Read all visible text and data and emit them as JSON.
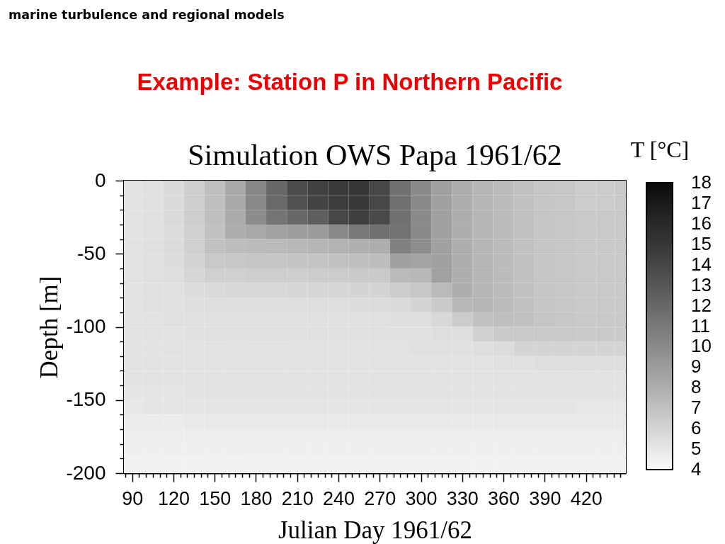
{
  "chart_data": {
    "type": "heatmap",
    "title": "Example: Station P in Northern Pacific",
    "subtitle": "Simulation OWS Papa 1961/62",
    "annotations": [
      "marine turbulence and regional models"
    ],
    "xlabel": "Julian Day 1961/62",
    "ylabel": "Depth [m]",
    "clabel": "T [°C]",
    "x": [
      90,
      105,
      120,
      135,
      150,
      165,
      180,
      195,
      210,
      225,
      240,
      255,
      270,
      285,
      300,
      315,
      330,
      345,
      360,
      375,
      390,
      405,
      420,
      435,
      447
    ],
    "y": [
      -5,
      -15,
      -25,
      -35,
      -45,
      -55,
      -65,
      -75,
      -85,
      -95,
      -105,
      -115,
      -125,
      -135,
      -145,
      -155,
      -165,
      -175,
      -185,
      -195
    ],
    "cells": [
      [
        5.3,
        5.4,
        5.7,
        6.3,
        7.1,
        8.3,
        10.2,
        12.0,
        13.6,
        14.4,
        14.8,
        15.0,
        14.0,
        11.5,
        10.0,
        8.8,
        8.0,
        7.6,
        7.3,
        7.0,
        6.8,
        6.7,
        6.4,
        6.4,
        6.6
      ],
      [
        5.3,
        5.4,
        5.7,
        6.3,
        7.1,
        8.3,
        10.1,
        11.9,
        13.4,
        14.2,
        14.7,
        14.9,
        14.0,
        11.5,
        10.0,
        8.8,
        8.0,
        7.6,
        7.3,
        7.0,
        6.8,
        6.7,
        6.4,
        6.4,
        6.6
      ],
      [
        5.3,
        5.4,
        5.7,
        6.3,
        7.1,
        8.2,
        9.9,
        11.2,
        12.0,
        12.5,
        14.0,
        14.5,
        13.8,
        11.5,
        10.0,
        8.8,
        8.0,
        7.6,
        7.3,
        7.0,
        6.8,
        6.7,
        6.6,
        6.6,
        6.6
      ],
      [
        5.3,
        5.4,
        5.6,
        6.2,
        7.0,
        8.0,
        8.3,
        8.7,
        8.9,
        9.0,
        10.0,
        11.0,
        11.5,
        11.4,
        10.0,
        8.8,
        8.0,
        7.6,
        7.3,
        7.0,
        6.8,
        6.7,
        6.6,
        6.6,
        6.6
      ],
      [
        5.3,
        5.4,
        5.6,
        6.2,
        7.0,
        7.2,
        7.3,
        7.4,
        7.5,
        7.6,
        7.7,
        7.9,
        8.0,
        10.5,
        9.8,
        8.8,
        8.0,
        7.6,
        7.3,
        7.0,
        6.8,
        6.7,
        6.6,
        6.6,
        6.6
      ],
      [
        5.3,
        5.4,
        5.6,
        6.1,
        6.6,
        6.7,
        6.8,
        6.8,
        6.9,
        6.9,
        7.0,
        7.1,
        7.2,
        8.8,
        8.6,
        8.8,
        8.0,
        7.6,
        7.3,
        7.0,
        6.8,
        6.7,
        6.6,
        6.6,
        6.6
      ],
      [
        5.3,
        5.4,
        5.5,
        5.9,
        6.2,
        6.2,
        6.3,
        6.3,
        6.3,
        6.4,
        6.4,
        6.5,
        6.5,
        7.4,
        7.5,
        8.7,
        8.0,
        7.6,
        7.3,
        7.0,
        6.8,
        6.7,
        6.6,
        6.6,
        6.6
      ],
      [
        5.3,
        5.4,
        5.4,
        5.6,
        5.7,
        5.8,
        5.8,
        5.8,
        5.9,
        5.9,
        5.9,
        6.0,
        6.0,
        6.4,
        6.7,
        7.4,
        8.0,
        7.6,
        7.3,
        7.0,
        6.8,
        6.7,
        6.6,
        6.6,
        6.6
      ],
      [
        5.3,
        5.4,
        5.4,
        5.5,
        5.5,
        5.5,
        5.5,
        5.5,
        5.5,
        5.5,
        5.5,
        5.6,
        5.6,
        5.7,
        6.0,
        6.5,
        7.5,
        7.6,
        7.3,
        7.0,
        6.8,
        6.7,
        6.6,
        6.6,
        6.6
      ],
      [
        5.3,
        5.3,
        5.4,
        5.4,
        5.4,
        5.4,
        5.4,
        5.4,
        5.4,
        5.4,
        5.4,
        5.4,
        5.4,
        5.5,
        5.5,
        5.8,
        6.4,
        7.0,
        7.1,
        7.0,
        6.8,
        6.7,
        6.6,
        6.6,
        6.6
      ],
      [
        5.3,
        5.3,
        5.3,
        5.4,
        5.4,
        5.4,
        5.4,
        5.4,
        5.4,
        5.4,
        5.4,
        5.4,
        5.4,
        5.4,
        5.4,
        5.5,
        5.5,
        6.2,
        6.5,
        6.6,
        6.6,
        6.6,
        6.5,
        6.5,
        6.5
      ],
      [
        5.2,
        5.2,
        5.3,
        5.3,
        5.3,
        5.3,
        5.3,
        5.3,
        5.3,
        5.3,
        5.3,
        5.3,
        5.3,
        5.3,
        5.4,
        5.4,
        5.4,
        5.5,
        5.6,
        6.0,
        6.0,
        6.0,
        6.0,
        6.0,
        6.0
      ],
      [
        5.2,
        5.2,
        5.2,
        5.3,
        5.3,
        5.3,
        5.3,
        5.3,
        5.3,
        5.3,
        5.3,
        5.3,
        5.3,
        5.3,
        5.3,
        5.3,
        5.3,
        5.3,
        5.4,
        5.4,
        5.5,
        5.5,
        5.5,
        5.5,
        5.5
      ],
      [
        5.2,
        5.2,
        5.2,
        5.2,
        5.2,
        5.2,
        5.2,
        5.2,
        5.2,
        5.2,
        5.2,
        5.2,
        5.2,
        5.2,
        5.2,
        5.2,
        5.2,
        5.3,
        5.3,
        5.3,
        5.3,
        5.3,
        5.3,
        5.3,
        5.3
      ],
      [
        5.1,
        5.1,
        5.1,
        5.2,
        5.2,
        5.2,
        5.2,
        5.2,
        5.2,
        5.2,
        5.2,
        5.2,
        5.2,
        5.2,
        5.2,
        5.2,
        5.2,
        5.2,
        5.2,
        5.2,
        5.2,
        5.2,
        5.2,
        5.2,
        5.2
      ],
      [
        5.0,
        5.1,
        5.1,
        5.1,
        5.1,
        5.1,
        5.1,
        5.1,
        5.1,
        5.1,
        5.1,
        5.1,
        5.1,
        5.1,
        5.1,
        5.1,
        5.1,
        5.1,
        5.1,
        5.1,
        5.1,
        5.1,
        5.0,
        5.0,
        5.0
      ],
      [
        4.8,
        4.8,
        4.8,
        4.9,
        4.9,
        4.9,
        4.9,
        4.9,
        4.9,
        4.9,
        4.9,
        4.9,
        4.9,
        4.9,
        4.9,
        4.9,
        4.9,
        4.9,
        4.9,
        4.9,
        4.9,
        4.9,
        4.9,
        4.9,
        4.9
      ],
      [
        4.7,
        4.7,
        4.7,
        4.7,
        4.7,
        4.7,
        4.7,
        4.7,
        4.7,
        4.7,
        4.7,
        4.7,
        4.7,
        4.7,
        4.7,
        4.7,
        4.7,
        4.7,
        4.7,
        4.7,
        4.7,
        4.7,
        4.7,
        4.7,
        4.7
      ],
      [
        4.6,
        4.6,
        4.6,
        4.6,
        4.6,
        4.6,
        4.6,
        4.6,
        4.6,
        4.6,
        4.6,
        4.6,
        4.6,
        4.6,
        4.6,
        4.6,
        4.6,
        4.6,
        4.6,
        4.6,
        4.6,
        4.6,
        4.6,
        4.6,
        4.6
      ],
      [
        4.5,
        4.5,
        4.5,
        4.5,
        4.5,
        4.5,
        4.5,
        4.5,
        4.5,
        4.5,
        4.5,
        4.5,
        4.5,
        4.5,
        4.5,
        4.5,
        4.5,
        4.5,
        4.5,
        4.5,
        4.5,
        4.5,
        4.5,
        4.5,
        4.5
      ]
    ],
    "xlim": [
      84,
      449
    ],
    "ylim": [
      -200,
      0
    ],
    "xticks": [
      {
        "value": 85,
        "label": null
      },
      90,
      {
        "value": 95,
        "label": null
      },
      {
        "value": 100,
        "label": null
      },
      {
        "value": 105,
        "label": null
      },
      {
        "value": 110,
        "label": null
      },
      {
        "value": 115,
        "label": null
      },
      120,
      {
        "value": 125,
        "label": null
      },
      {
        "value": 130,
        "label": null
      },
      {
        "value": 135,
        "label": null
      },
      {
        "value": 140,
        "label": null
      },
      {
        "value": 145,
        "label": null
      },
      150,
      {
        "value": 155,
        "label": null
      },
      {
        "value": 160,
        "label": null
      },
      {
        "value": 165,
        "label": null
      },
      {
        "value": 170,
        "label": null
      },
      {
        "value": 175,
        "label": null
      },
      180,
      {
        "value": 185,
        "label": null
      },
      {
        "value": 190,
        "label": null
      },
      {
        "value": 195,
        "label": null
      },
      {
        "value": 200,
        "label": null
      },
      {
        "value": 205,
        "label": null
      },
      210,
      {
        "value": 215,
        "label": null
      },
      {
        "value": 220,
        "label": null
      },
      {
        "value": 225,
        "label": null
      },
      {
        "value": 230,
        "label": null
      },
      {
        "value": 235,
        "label": null
      },
      240,
      {
        "value": 245,
        "label": null
      },
      {
        "value": 250,
        "label": null
      },
      {
        "value": 255,
        "label": null
      },
      {
        "value": 260,
        "label": null
      },
      {
        "value": 265,
        "label": null
      },
      270,
      {
        "value": 275,
        "label": null
      },
      {
        "value": 280,
        "label": null
      },
      {
        "value": 285,
        "label": null
      },
      {
        "value": 290,
        "label": null
      },
      {
        "value": 295,
        "label": null
      },
      300,
      {
        "value": 305,
        "label": null
      },
      {
        "value": 310,
        "label": null
      },
      {
        "value": 315,
        "label": null
      },
      {
        "value": 320,
        "label": null
      },
      {
        "value": 325,
        "label": null
      },
      330,
      {
        "value": 335,
        "label": null
      },
      {
        "value": 340,
        "label": null
      },
      {
        "value": 345,
        "label": null
      },
      {
        "value": 350,
        "label": null
      },
      {
        "value": 355,
        "label": null
      },
      360,
      {
        "value": 365,
        "label": null
      },
      {
        "value": 370,
        "label": null
      },
      {
        "value": 375,
        "label": null
      },
      {
        "value": 380,
        "label": null
      },
      {
        "value": 385,
        "label": null
      },
      390,
      {
        "value": 395,
        "label": null
      },
      {
        "value": 400,
        "label": null
      },
      {
        "value": 405,
        "label": null
      },
      {
        "value": 410,
        "label": null
      },
      {
        "value": 415,
        "label": null
      },
      420,
      {
        "value": 425,
        "label": null
      },
      {
        "value": 430,
        "label": null
      },
      {
        "value": 435,
        "label": null
      },
      {
        "value": 440,
        "label": null
      },
      {
        "value": 445,
        "label": null
      }
    ],
    "yticks": [
      -200,
      {
        "value": -190,
        "label": null
      },
      {
        "value": -180,
        "label": null
      },
      {
        "value": -170,
        "label": null
      },
      {
        "value": -160,
        "label": null
      },
      -150,
      {
        "value": -140,
        "label": null
      },
      {
        "value": -130,
        "label": null
      },
      {
        "value": -120,
        "label": null
      },
      {
        "value": -110,
        "label": null
      },
      -100,
      {
        "value": -90,
        "label": null
      },
      {
        "value": -80,
        "label": null
      },
      {
        "value": -70,
        "label": null
      },
      {
        "value": -60,
        "label": null
      },
      -50,
      {
        "value": -40,
        "label": null
      },
      {
        "value": -30,
        "label": null
      },
      {
        "value": -20,
        "label": null
      },
      {
        "value": -10,
        "label": null
      },
      0
    ],
    "clim": [
      4,
      18
    ],
    "cticks": [
      4,
      5,
      6,
      7,
      8,
      9,
      10,
      11,
      12,
      13,
      14,
      15,
      16,
      17,
      18
    ],
    "grid": false
  }
}
